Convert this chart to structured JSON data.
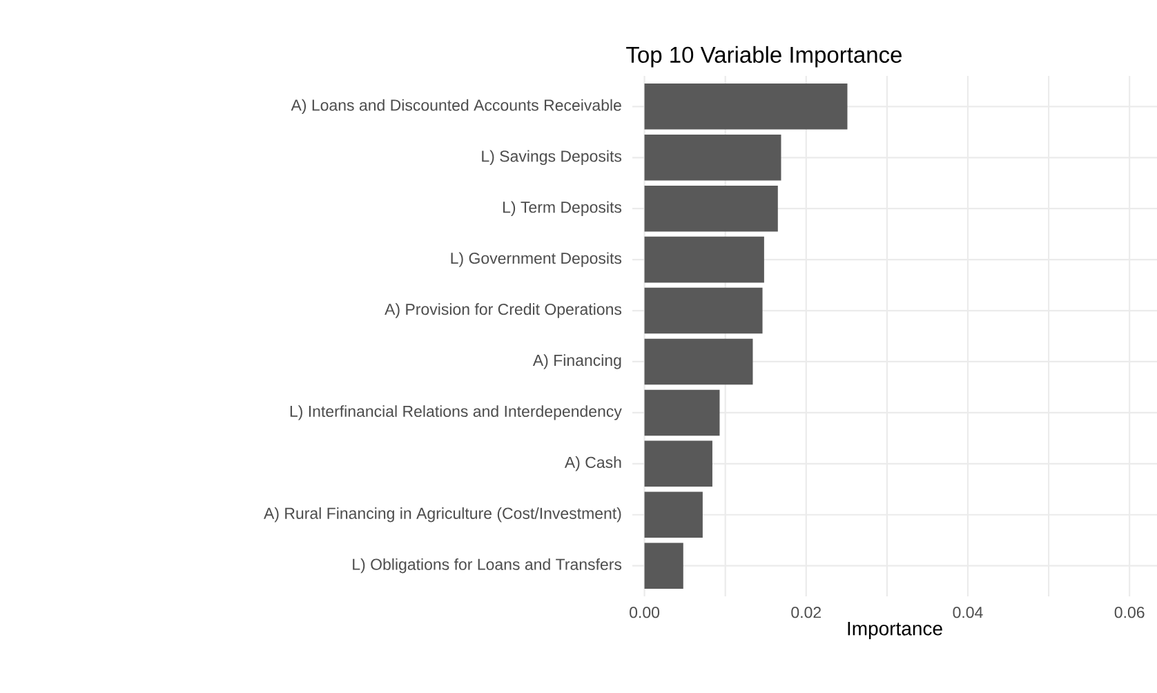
{
  "chart_data": {
    "type": "bar",
    "orientation": "horizontal",
    "title": "Top 10 Variable Importance",
    "xlabel": "Importance",
    "categories": [
      "A) Loans and Discounted Accounts Receivable",
      "L) Savings Deposits",
      "L) Term Deposits",
      "L) Government Deposits",
      "A) Provision for Credit Operations",
      "A) Financing",
      "L) Interfinancial Relations and Interdependency",
      "A) Cash",
      "A) Rural Financing in Agriculture (Cost/Investment)",
      "L) Obligations for Loans and Transfers"
    ],
    "values": [
      0.0251,
      0.0169,
      0.0165,
      0.0148,
      0.0146,
      0.0134,
      0.0093,
      0.0084,
      0.0072,
      0.0048
    ],
    "color": "#595959",
    "xlim": [
      -0.0015,
      0.0634
    ],
    "xticks": [
      {
        "value": 0,
        "label": "0.00"
      },
      {
        "value": 0.01,
        "label": null
      },
      {
        "value": 0.02,
        "label": "0.02"
      },
      {
        "value": 0.03,
        "label": null
      },
      {
        "value": 0.04,
        "label": "0.04"
      },
      {
        "value": 0.05,
        "label": null
      },
      {
        "value": 0.06,
        "label": "0.06"
      }
    ],
    "grid": true
  }
}
